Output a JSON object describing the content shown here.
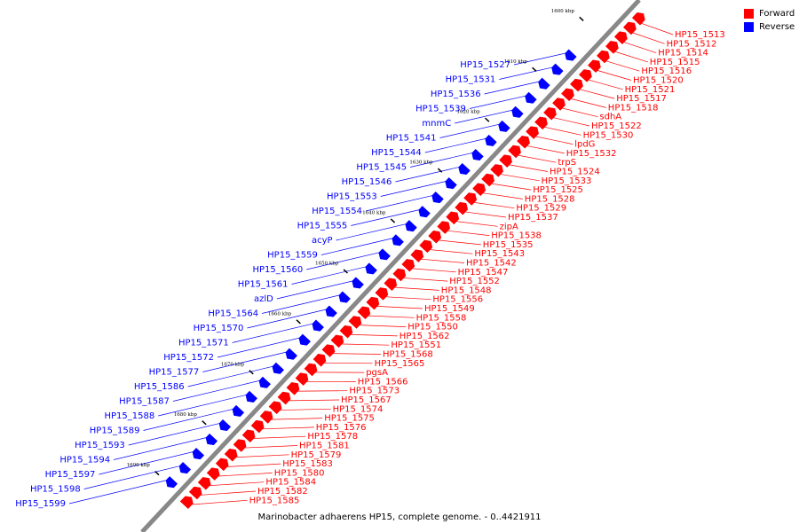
{
  "legend": {
    "forward_label": "Forward",
    "reverse_label": "Reverse",
    "forward_color": "#ff0000",
    "reverse_color": "#0000ff"
  },
  "caption": "Marinobacter adhaerens HP15, complete genome. - 0..4421911",
  "colors": {
    "backbone": "#888888",
    "leader_forward": "#ff0000",
    "leader_reverse": "#0000ff",
    "tick": "#000000"
  },
  "scale": {
    "labels": [
      "1600 kbp",
      "1610 kbp",
      "1620 kbp",
      "1630 kbp",
      "1640 kbp",
      "1650 kbp",
      "1660 kbp",
      "1670 kbp",
      "1680 kbp",
      "1690 kbp"
    ]
  },
  "reverse_genes": [
    "HP15_1527",
    "HP15_1531",
    "HP15_1536",
    "HP15_1539",
    "mnmC",
    "HP15_1541",
    "HP15_1544",
    "HP15_1545",
    "HP15_1546",
    "HP15_1553",
    "HP15_1554",
    "HP15_1555",
    "acyP",
    "HP15_1559",
    "HP15_1560",
    "HP15_1561",
    "azlD",
    "HP15_1564",
    "HP15_1570",
    "HP15_1571",
    "HP15_1572",
    "HP15_1577",
    "HP15_1586",
    "HP15_1587",
    "HP15_1588",
    "HP15_1589",
    "HP15_1593",
    "HP15_1594",
    "HP15_1597",
    "HP15_1598",
    "HP15_1599"
  ],
  "forward_genes": [
    "HP15_1513",
    "HP15_1512",
    "HP15_1514",
    "HP15_1515",
    "HP15_1516",
    "HP15_1520",
    "HP15_1521",
    "HP15_1517",
    "HP15_1518",
    "sdhA",
    "HP15_1522",
    "HP15_1530",
    "lpdG",
    "HP15_1532",
    "trpS",
    "HP15_1524",
    "HP15_1533",
    "HP15_1525",
    "HP15_1528",
    "HP15_1529",
    "HP15_1537",
    "zipA",
    "HP15_1538",
    "HP15_1535",
    "HP15_1543",
    "HP15_1542",
    "HP15_1547",
    "HP15_1552",
    "HP15_1548",
    "HP15_1556",
    "HP15_1549",
    "HP15_1558",
    "HP15_1550",
    "HP15_1562",
    "HP15_1551",
    "HP15_1568",
    "HP15_1565",
    "pgsA",
    "HP15_1566",
    "HP15_1573",
    "HP15_1567",
    "HP15_1574",
    "HP15_1575",
    "HP15_1576",
    "HP15_1578",
    "HP15_1581",
    "HP15_1579",
    "HP15_1583",
    "HP15_1580",
    "HP15_1584",
    "HP15_1582",
    "HP15_1585"
  ]
}
